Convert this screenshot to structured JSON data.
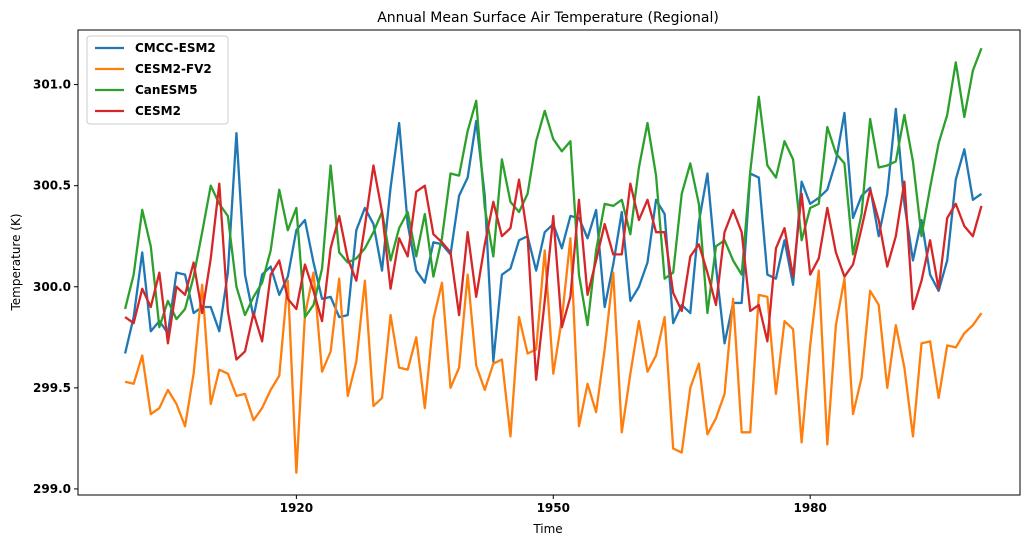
{
  "chart_data": {
    "type": "line",
    "title": "Annual Mean Surface Air Temperature (Regional)",
    "xlabel": "Time",
    "ylabel": "Temperature (K)",
    "xlim": [
      1894.5,
      2004.5
    ],
    "ylim": [
      298.97,
      301.27
    ],
    "xticks": [
      1920,
      1950,
      1980
    ],
    "yticks": [
      299.0,
      299.5,
      300.0,
      300.5,
      301.0
    ],
    "ytick_labels": [
      "299.0",
      "299.5",
      "300.0",
      "300.5",
      "301.0"
    ],
    "legend_position": "upper-left",
    "x": [
      1900,
      1901,
      1902,
      1903,
      1904,
      1905,
      1906,
      1907,
      1908,
      1909,
      1910,
      1911,
      1912,
      1913,
      1914,
      1915,
      1916,
      1917,
      1918,
      1919,
      1920,
      1921,
      1922,
      1923,
      1924,
      1925,
      1926,
      1927,
      1928,
      1929,
      1930,
      1931,
      1932,
      1933,
      1934,
      1935,
      1936,
      1937,
      1938,
      1939,
      1940,
      1941,
      1942,
      1943,
      1944,
      1945,
      1946,
      1947,
      1948,
      1949,
      1950,
      1951,
      1952,
      1953,
      1954,
      1955,
      1956,
      1957,
      1958,
      1959,
      1960,
      1961,
      1962,
      1963,
      1964,
      1965,
      1966,
      1967,
      1968,
      1969,
      1970,
      1971,
      1972,
      1973,
      1974,
      1975,
      1976,
      1977,
      1978,
      1979,
      1980,
      1981,
      1982,
      1983,
      1984,
      1985,
      1986,
      1987,
      1988,
      1989,
      1990,
      1991,
      1992,
      1993,
      1994,
      1995,
      1996,
      1997,
      1998,
      1999,
      2000
    ],
    "series": [
      {
        "name": "CMCC-ESM2",
        "color": "#1f77b4",
        "values": [
          299.67,
          299.85,
          300.17,
          299.78,
          299.83,
          299.77,
          300.07,
          300.06,
          299.87,
          299.9,
          299.9,
          299.78,
          300.07,
          300.76,
          300.06,
          299.85,
          300.06,
          300.1,
          299.96,
          300.05,
          300.28,
          300.33,
          300.12,
          299.94,
          299.95,
          299.85,
          299.86,
          300.28,
          300.39,
          300.31,
          300.08,
          300.49,
          300.81,
          300.31,
          300.08,
          300.02,
          300.22,
          300.21,
          300.16,
          300.45,
          300.54,
          300.82,
          300.45,
          299.63,
          300.06,
          300.09,
          300.23,
          300.25,
          300.08,
          300.27,
          300.31,
          300.19,
          300.35,
          300.34,
          300.24,
          300.38,
          299.9,
          300.11,
          300.37,
          299.93,
          300.0,
          300.12,
          300.43,
          300.36,
          299.82,
          299.91,
          299.87,
          300.32,
          300.56,
          300.1,
          299.72,
          299.92,
          299.92,
          300.56,
          300.54,
          300.06,
          300.04,
          300.23,
          300.01,
          300.52,
          300.41,
          300.44,
          300.48,
          300.62,
          300.86,
          300.34,
          300.45,
          300.49,
          300.25,
          300.46,
          300.88,
          300.41,
          300.13,
          300.33,
          300.06,
          299.98,
          300.13,
          300.53,
          300.68,
          300.43,
          300.46
        ]
      },
      {
        "name": "CESM2-FV2",
        "color": "#ff7f0e",
        "values": [
          299.53,
          299.52,
          299.66,
          299.37,
          299.4,
          299.49,
          299.42,
          299.31,
          299.57,
          300.01,
          299.42,
          299.59,
          299.57,
          299.46,
          299.47,
          299.34,
          299.4,
          299.49,
          299.56,
          300.03,
          299.08,
          299.86,
          300.07,
          299.58,
          299.68,
          300.04,
          299.46,
          299.63,
          300.03,
          299.41,
          299.45,
          299.86,
          299.6,
          299.59,
          299.75,
          299.4,
          299.84,
          300.02,
          299.5,
          299.6,
          300.06,
          299.61,
          299.49,
          299.62,
          299.64,
          299.26,
          299.85,
          299.67,
          299.69,
          300.18,
          299.57,
          299.84,
          300.24,
          299.31,
          299.52,
          299.38,
          299.69,
          300.07,
          299.28,
          299.57,
          299.83,
          299.58,
          299.66,
          299.85,
          299.2,
          299.18,
          299.5,
          299.62,
          299.27,
          299.35,
          299.47,
          299.94,
          299.28,
          299.28,
          299.96,
          299.95,
          299.47,
          299.83,
          299.79,
          299.23,
          299.71,
          300.08,
          299.22,
          299.81,
          300.04,
          299.37,
          299.55,
          299.98,
          299.91,
          299.5,
          299.81,
          299.6,
          299.26,
          299.72,
          299.73,
          299.45,
          299.71,
          299.7,
          299.77,
          299.81,
          299.87
        ]
      },
      {
        "name": "CanESM5",
        "color": "#2ca02c",
        "values": [
          299.89,
          300.06,
          300.38,
          300.2,
          299.8,
          299.93,
          299.84,
          299.89,
          300.05,
          300.27,
          300.5,
          300.41,
          300.35,
          300.0,
          299.86,
          299.95,
          300.02,
          300.18,
          300.48,
          300.28,
          300.39,
          299.85,
          299.91,
          300.09,
          300.6,
          300.17,
          300.12,
          300.14,
          300.19,
          300.27,
          300.37,
          300.13,
          300.29,
          300.37,
          300.15,
          300.36,
          300.05,
          300.24,
          300.56,
          300.55,
          300.77,
          300.92,
          300.39,
          300.15,
          300.63,
          300.42,
          300.37,
          300.46,
          300.72,
          300.87,
          300.73,
          300.67,
          300.72,
          300.06,
          299.81,
          300.18,
          300.41,
          300.4,
          300.43,
          300.26,
          300.59,
          300.81,
          300.55,
          300.04,
          300.07,
          300.46,
          300.61,
          300.41,
          299.87,
          300.2,
          300.23,
          300.13,
          300.06,
          300.57,
          300.94,
          300.6,
          300.54,
          300.72,
          300.63,
          300.23,
          300.39,
          300.41,
          300.79,
          300.66,
          300.61,
          300.16,
          300.36,
          300.83,
          300.59,
          300.6,
          300.62,
          300.85,
          300.62,
          300.25,
          300.49,
          300.71,
          300.85,
          301.11,
          300.84,
          301.07,
          301.18
        ]
      },
      {
        "name": "CESM2",
        "color": "#d62728",
        "values": [
          299.85,
          299.82,
          299.99,
          299.9,
          300.07,
          299.72,
          300.0,
          299.96,
          300.12,
          299.87,
          300.14,
          300.51,
          299.88,
          299.64,
          299.68,
          299.87,
          299.73,
          300.06,
          300.13,
          299.94,
          299.89,
          300.11,
          299.98,
          299.83,
          300.19,
          300.35,
          300.14,
          300.03,
          300.3,
          300.6,
          300.37,
          299.99,
          300.24,
          300.15,
          300.47,
          300.5,
          300.26,
          300.22,
          300.17,
          299.86,
          300.27,
          299.95,
          300.21,
          300.42,
          300.25,
          300.29,
          300.53,
          300.25,
          299.54,
          299.93,
          300.35,
          299.8,
          299.95,
          300.43,
          299.96,
          300.13,
          300.31,
          300.16,
          300.16,
          300.51,
          300.33,
          300.43,
          300.27,
          300.27,
          299.97,
          299.88,
          300.15,
          300.21,
          300.07,
          299.91,
          300.27,
          300.38,
          300.27,
          299.88,
          299.91,
          299.73,
          300.19,
          300.29,
          300.05,
          300.46,
          300.06,
          300.14,
          300.39,
          300.17,
          300.05,
          300.11,
          300.29,
          300.48,
          300.33,
          300.1,
          300.25,
          300.52,
          299.89,
          300.03,
          300.23,
          299.99,
          300.34,
          300.41,
          300.3,
          300.25,
          300.4
        ]
      }
    ]
  }
}
